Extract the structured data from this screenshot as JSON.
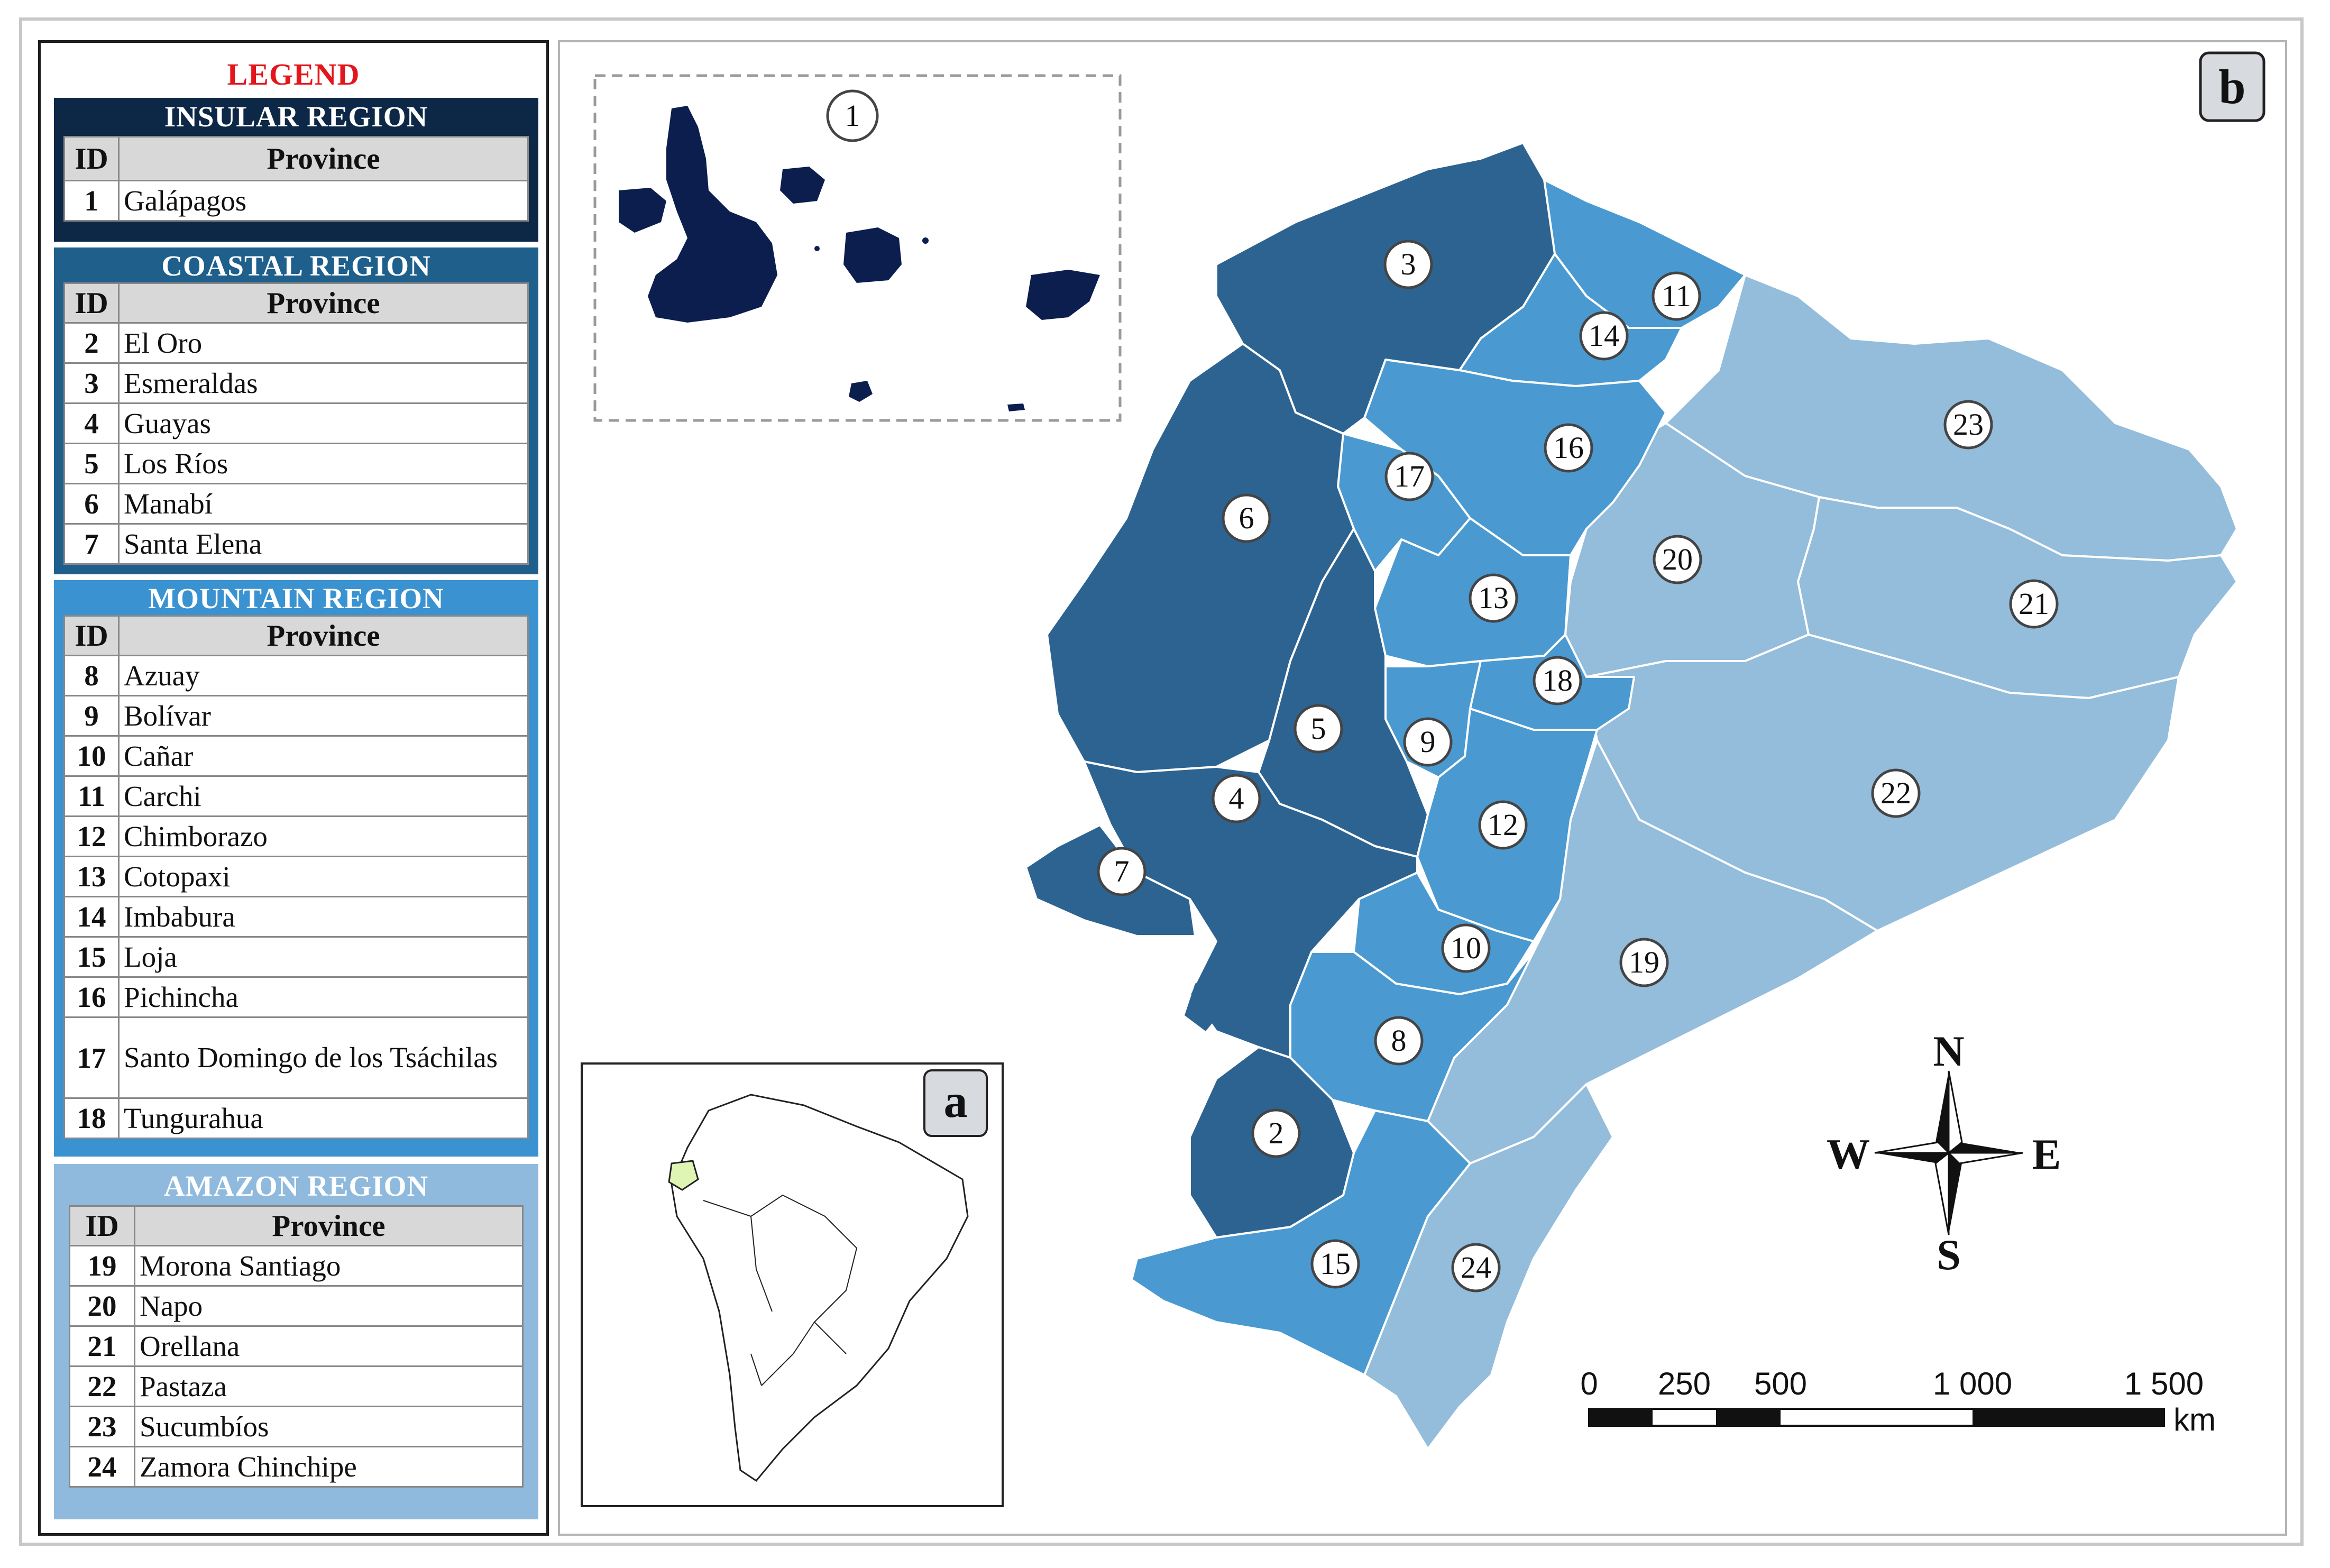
{
  "legend": {
    "title": "LEGEND",
    "id_header": "ID",
    "province_header": "Province",
    "regions": [
      {
        "name": "INSULAR REGION",
        "color": "#0d2846",
        "rows": [
          {
            "id": "1",
            "name": "Galápagos"
          }
        ]
      },
      {
        "name": "COASTAL REGION",
        "color": "#1e5f8c",
        "rows": [
          {
            "id": "2",
            "name": "El Oro"
          },
          {
            "id": "3",
            "name": "Esmeraldas"
          },
          {
            "id": "4",
            "name": "Guayas"
          },
          {
            "id": "5",
            "name": "Los Ríos"
          },
          {
            "id": "6",
            "name": "Manabí"
          },
          {
            "id": "7",
            "name": "Santa Elena"
          }
        ]
      },
      {
        "name": "MOUNTAIN REGION",
        "color": "#3a93d0",
        "rows": [
          {
            "id": "8",
            "name": "Azuay"
          },
          {
            "id": "9",
            "name": "Bolívar"
          },
          {
            "id": "10",
            "name": "Cañar"
          },
          {
            "id": "11",
            "name": "Carchi"
          },
          {
            "id": "12",
            "name": "Chimborazo"
          },
          {
            "id": "13",
            "name": "Cotopaxi"
          },
          {
            "id": "14",
            "name": "Imbabura"
          },
          {
            "id": "15",
            "name": "Loja"
          },
          {
            "id": "16",
            "name": "Pichincha"
          },
          {
            "id": "17",
            "name": "Santo Domingo de los Tsáchilas"
          },
          {
            "id": "18",
            "name": "Tungurahua"
          }
        ]
      },
      {
        "name": "AMAZON REGION",
        "color": "#8fbadd",
        "rows": [
          {
            "id": "19",
            "name": "Morona Santiago"
          },
          {
            "id": "20",
            "name": "Napo"
          },
          {
            "id": "21",
            "name": "Orellana"
          },
          {
            "id": "22",
            "name": "Pastaza"
          },
          {
            "id": "23",
            "name": "Sucumbíos"
          },
          {
            "id": "24",
            "name": "Zamora Chinchipe"
          }
        ]
      }
    ]
  },
  "map": {
    "panel_label": "b",
    "inset_label": "a",
    "insular_label": "1",
    "province_labels": [
      "2",
      "3",
      "4",
      "5",
      "6",
      "7",
      "8",
      "9",
      "10",
      "11",
      "12",
      "13",
      "14",
      "15",
      "16",
      "17",
      "18",
      "19",
      "20",
      "21",
      "22",
      "23",
      "24"
    ],
    "colors": {
      "insular": "#0b1e4e",
      "coastal": "#2d6391",
      "mountain": "#4a9ad1",
      "amazon": "#94bcdb",
      "ecuador_highlight": "#dff5b4"
    }
  },
  "compass": {
    "n": "N",
    "s": "S",
    "e": "E",
    "w": "W"
  },
  "scale_bar": {
    "ticks": [
      "0",
      "250",
      "500",
      "1 000",
      "1 500"
    ],
    "unit": "km"
  }
}
